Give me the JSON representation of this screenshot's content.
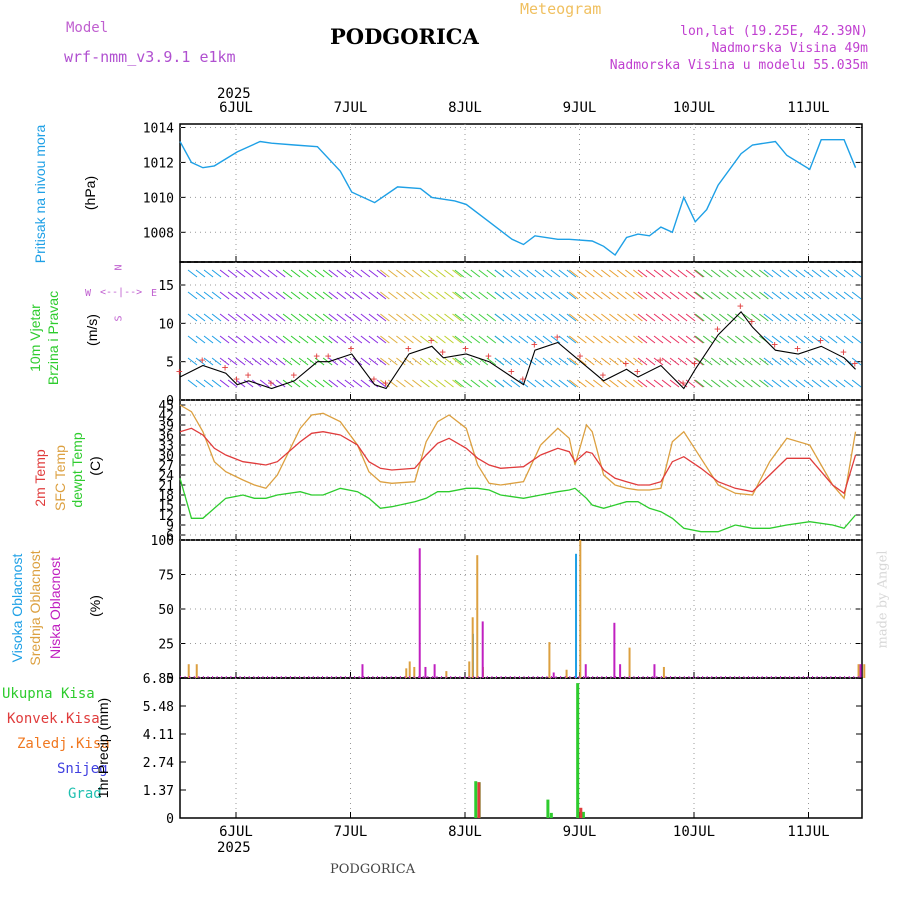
{
  "header": {
    "model_label": "Model",
    "model_name": "wrf-nmm_v3.9.1 e1km",
    "title": "PODGORICA",
    "meteogram": "Meteogram",
    "lonlat": "lon,lat (19.25E, 42.39N)",
    "elevation": "Nadmorska Visina 49m",
    "model_elevation": "Nadmorska Visina u modelu 55.035m",
    "year": "2025",
    "footer_title": "PODGORICA",
    "watermark": "made by Angel"
  },
  "days": [
    "6JUL",
    "7JUL",
    "8JUL",
    "9JUL",
    "10JUL",
    "11JUL"
  ],
  "colors": {
    "pressure": "#1ea0e6",
    "temp2m": "#e03c3c",
    "sfc": "#dca040",
    "dewpt": "#2ecc2e",
    "high_cloud": "#1ea0e6",
    "mid_cloud": "#dca040",
    "low_cloud": "#c020c0",
    "total_precip": "#2ecc2e",
    "conv_precip": "#e03c3c",
    "frozen_precip": "#f07820",
    "snow": "#4040e0",
    "hail": "#20c0b0"
  },
  "panel_labels": {
    "pressure": [
      "Pritisak na nivou mora",
      "(hPa)"
    ],
    "wind": [
      "10m Vjetar",
      "Brzina i Pravac",
      "(m/s)"
    ],
    "compass": {
      "n": "N",
      "s": "S",
      "e": "E",
      "w": "W"
    },
    "temp": [
      "2m Temp",
      "SFC Temp",
      "dewpt Temp",
      "(C)"
    ],
    "cloud": [
      "Visoka Oblacnost",
      "Srednja Oblacnost",
      "Niska Oblacnost",
      "(%)"
    ],
    "precip": [
      "Ukupna Kisa",
      "Konvek.Kisa",
      "Zaledj.Kisa",
      "Snijeg",
      "Grad",
      "1hr Precip (mm)"
    ]
  },
  "chart_data": [
    {
      "type": "line",
      "panel": "pressure",
      "ylabel": "(hPa)",
      "yticks": [
        "1014",
        "1012",
        "1010",
        "1008"
      ],
      "ylim": [
        1006.3,
        1014.2
      ],
      "x": [
        0,
        0.1,
        0.2,
        0.3,
        0.5,
        0.7,
        0.8,
        1.0,
        1.2,
        1.4,
        1.5,
        1.7,
        1.9,
        2.1,
        2.2,
        2.4,
        2.5,
        2.7,
        2.9,
        3.0,
        3.1,
        3.3,
        3.4,
        3.6,
        3.7,
        3.8,
        3.9,
        4.0,
        4.1,
        4.2,
        4.3,
        4.4,
        4.5,
        4.6,
        4.7,
        4.9,
        5.0,
        5.2,
        5.3,
        5.5,
        5.6,
        5.8,
        5.9
      ],
      "series": [
        {
          "values": [
            1013.2,
            1012.0,
            1011.7,
            1011.8,
            1012.6,
            1013.2,
            1013.1,
            1013.0,
            1012.9,
            1011.5,
            1010.3,
            1009.7,
            1010.6,
            1010.5,
            1010.0,
            1009.8,
            1009.6,
            1008.6,
            1007.6,
            1007.3,
            1007.8,
            1007.6,
            1007.6,
            1007.5,
            1007.2,
            1006.7,
            1007.7,
            1007.9,
            1007.8,
            1008.3,
            1008.0,
            1010.0,
            1008.6,
            1009.3,
            1010.7,
            1012.5,
            1013.0,
            1013.2,
            1012.4,
            1011.6,
            1013.3,
            1013.3,
            1011.7
          ]
        }
      ]
    },
    {
      "type": "line",
      "panel": "wind",
      "ylabel": "(m/s)",
      "yticks": [
        "15",
        "10",
        "5",
        "0"
      ],
      "ylim": [
        0,
        18
      ],
      "x": [
        0,
        0.2,
        0.4,
        0.5,
        0.6,
        0.8,
        1.0,
        1.2,
        1.3,
        1.5,
        1.7,
        1.8,
        2.0,
        2.2,
        2.3,
        2.5,
        2.7,
        2.9,
        3.0,
        3.1,
        3.3,
        3.5,
        3.7,
        3.9,
        4.0,
        4.2,
        4.4,
        4.5,
        4.7,
        4.9,
        5.0,
        5.2,
        5.4,
        5.6,
        5.8,
        5.9
      ],
      "series": [
        {
          "values": [
            3.0,
            4.5,
            3.5,
            2.0,
            2.5,
            1.5,
            2.5,
            5.0,
            5.0,
            6.0,
            2.0,
            1.5,
            6.0,
            7.0,
            5.5,
            6.0,
            5.0,
            3.0,
            2.0,
            6.5,
            7.5,
            5.0,
            2.5,
            4.0,
            3.0,
            4.5,
            1.5,
            4.0,
            8.5,
            11.5,
            9.5,
            6.5,
            6.0,
            7.0,
            5.5,
            4.0
          ]
        }
      ]
    },
    {
      "type": "line",
      "panel": "temperature",
      "ylabel": "(C)",
      "yticks": [
        "45",
        "42",
        "39",
        "36",
        "33",
        "30",
        "27",
        "24",
        "21",
        "18",
        "15",
        "12",
        "9",
        "6"
      ],
      "ylim": [
        4.5,
        46.5
      ],
      "x": [
        0,
        0.1,
        0.2,
        0.3,
        0.4,
        0.55,
        0.65,
        0.75,
        0.85,
        1.05,
        1.15,
        1.25,
        1.4,
        1.55,
        1.65,
        1.75,
        1.85,
        2.05,
        2.15,
        2.25,
        2.35,
        2.5,
        2.6,
        2.7,
        2.8,
        3.0,
        3.15,
        3.3,
        3.4,
        3.45,
        3.55,
        3.6,
        3.7,
        3.8,
        3.9,
        4.0,
        4.1,
        4.2,
        4.3,
        4.4,
        4.55,
        4.7,
        4.85,
        5.0,
        5.15,
        5.3,
        5.5,
        5.7,
        5.8,
        5.9
      ],
      "series": [
        {
          "name": "2m Temp",
          "values": [
            37,
            38,
            36,
            32,
            30,
            28,
            27.5,
            27,
            28,
            34,
            36.5,
            37,
            36,
            33,
            28,
            26,
            25.5,
            26,
            30,
            33.5,
            35,
            32,
            29,
            27,
            26,
            26.5,
            30,
            32,
            31,
            28,
            31,
            30.5,
            25.5,
            23,
            22,
            21,
            21,
            22,
            28,
            29.5,
            26,
            22,
            20,
            19,
            24,
            29,
            29,
            21,
            18.5,
            30
          ]
        },
        {
          "name": "SFC Temp",
          "values": [
            45,
            43,
            37,
            28,
            25,
            22.5,
            21,
            20,
            24,
            38,
            42,
            42.5,
            40,
            33,
            25,
            22,
            21.5,
            22,
            34,
            40,
            42,
            38,
            27,
            21.5,
            21,
            22,
            33,
            38,
            35,
            27,
            39,
            37,
            24,
            21,
            20,
            19.5,
            19.5,
            20,
            34,
            37,
            29,
            21,
            18.5,
            18,
            28,
            35,
            33,
            21,
            17,
            37
          ]
        },
        {
          "name": "dewpt Temp",
          "values": [
            23,
            11,
            11,
            14,
            17,
            18,
            17,
            17,
            18,
            19,
            18,
            18,
            20,
            19,
            17,
            14,
            14.5,
            16,
            17,
            19,
            19,
            20,
            20,
            19.5,
            18,
            17,
            18,
            19,
            19.5,
            20,
            17,
            15,
            14,
            15,
            16,
            16,
            14,
            13,
            11,
            8,
            7,
            7,
            9,
            8,
            8,
            9,
            10,
            9,
            8,
            12
          ]
        }
      ]
    },
    {
      "type": "bar",
      "panel": "cloud",
      "ylabel": "(%)",
      "yticks": [
        "100",
        "75",
        "50",
        "25",
        "0"
      ],
      "ylim": [
        0,
        100
      ],
      "series": [
        {
          "name": "Visoka Oblacnost",
          "points": [
            [
              2.0,
              0
            ],
            [
              2.55,
              32
            ],
            [
              2.75,
              0
            ],
            [
              3.45,
              90
            ],
            [
              5.0,
              0
            ]
          ]
        },
        {
          "name": "Srednja Oblacnost",
          "points": [
            [
              0.05,
              10
            ],
            [
              0.12,
              10
            ],
            [
              1.95,
              7
            ],
            [
              1.98,
              12
            ],
            [
              2.02,
              8
            ],
            [
              2.3,
              5
            ],
            [
              2.5,
              12
            ],
            [
              2.53,
              44
            ],
            [
              2.57,
              89
            ],
            [
              2.62,
              8
            ],
            [
              3.2,
              26
            ],
            [
              3.35,
              6
            ],
            [
              3.47,
              100
            ],
            [
              3.9,
              22
            ],
            [
              4.2,
              8
            ],
            [
              5.9,
              10
            ],
            [
              5.95,
              10
            ]
          ]
        },
        {
          "name": "Niska Oblacnost",
          "points": [
            [
              1.55,
              10
            ],
            [
              2.05,
              94
            ],
            [
              2.1,
              8
            ],
            [
              2.18,
              10
            ],
            [
              2.6,
              41
            ],
            [
              3.22,
              4
            ],
            [
              3.5,
              10
            ],
            [
              3.75,
              40
            ],
            [
              3.8,
              10
            ],
            [
              4.1,
              10
            ],
            [
              5.9,
              10
            ]
          ]
        }
      ]
    },
    {
      "type": "bar",
      "panel": "precip",
      "ylabel": "1hr Precip (mm)",
      "yticks": [
        "6.85",
        "5.48",
        "4.11",
        "2.74",
        "1.37",
        "0"
      ],
      "ylim": [
        0,
        6.85
      ],
      "series": [
        {
          "name": "Ukupna Kisa",
          "points": [
            [
              2.57,
              1.8
            ],
            [
              2.6,
              1.75
            ],
            [
              3.2,
              0.9
            ],
            [
              3.23,
              0.25
            ],
            [
              3.46,
              6.6
            ],
            [
              3.51,
              0.3
            ]
          ]
        },
        {
          "name": "Konvek.Kisa",
          "points": [
            [
              2.58,
              1.75
            ],
            [
              3.47,
              0.5
            ]
          ]
        },
        {
          "name": "Zaledj.Kisa",
          "points": []
        },
        {
          "name": "Snijeg",
          "points": []
        },
        {
          "name": "Grad",
          "points": []
        }
      ]
    }
  ]
}
